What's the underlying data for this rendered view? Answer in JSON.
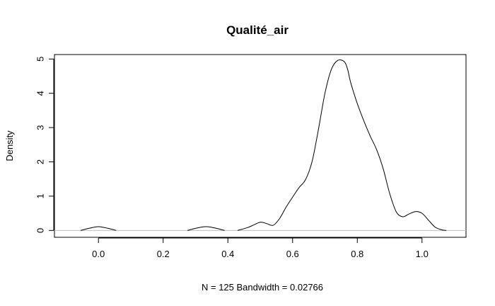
{
  "chart_data": {
    "type": "line",
    "title": "Qualité_air",
    "xlabel": "N = 125   Bandwidth = 0.02766",
    "ylabel": "Density",
    "xlim": [
      -0.136,
      1.136
    ],
    "ylim": [
      -0.2,
      5.13
    ],
    "xticks": [
      0.0,
      0.2,
      0.4,
      0.6,
      0.8,
      1.0
    ],
    "xtick_labels": [
      "0.0",
      "0.2",
      "0.4",
      "0.6",
      "0.8",
      "1.0"
    ],
    "yticks": [
      0,
      1,
      2,
      3,
      4,
      5
    ],
    "ytick_labels": [
      "0",
      "1",
      "2",
      "3",
      "4",
      "5"
    ],
    "grid": false,
    "zero_line": true,
    "series": [
      {
        "x": [
          -0.055,
          -0.03,
          -0.01,
          0.0,
          0.01,
          0.03,
          0.055,
          0.275,
          0.3,
          0.32,
          0.333,
          0.345,
          0.365,
          0.39,
          0.43,
          0.46,
          0.48,
          0.5,
          0.52,
          0.54,
          0.56,
          0.58,
          0.6,
          0.62,
          0.64,
          0.66,
          0.68,
          0.7,
          0.72,
          0.74,
          0.76,
          0.77,
          0.78,
          0.8,
          0.82,
          0.84,
          0.86,
          0.88,
          0.9,
          0.92,
          0.94,
          0.96,
          0.98,
          1.0,
          1.02,
          1.04,
          1.06,
          1.075
        ],
        "y": [
          0.0,
          0.06,
          0.1,
          0.11,
          0.1,
          0.06,
          0.0,
          0.0,
          0.06,
          0.1,
          0.11,
          0.1,
          0.06,
          0.0,
          0.0,
          0.08,
          0.16,
          0.24,
          0.2,
          0.15,
          0.35,
          0.68,
          0.97,
          1.25,
          1.48,
          2.0,
          2.95,
          4.0,
          4.7,
          4.96,
          4.92,
          4.7,
          4.3,
          3.7,
          3.2,
          2.75,
          2.35,
          1.8,
          1.08,
          0.55,
          0.4,
          0.48,
          0.55,
          0.5,
          0.3,
          0.1,
          0.02,
          0.0
        ],
        "segments": [
          [
            0,
            6
          ],
          [
            7,
            13
          ],
          [
            14,
            47
          ]
        ]
      }
    ]
  }
}
